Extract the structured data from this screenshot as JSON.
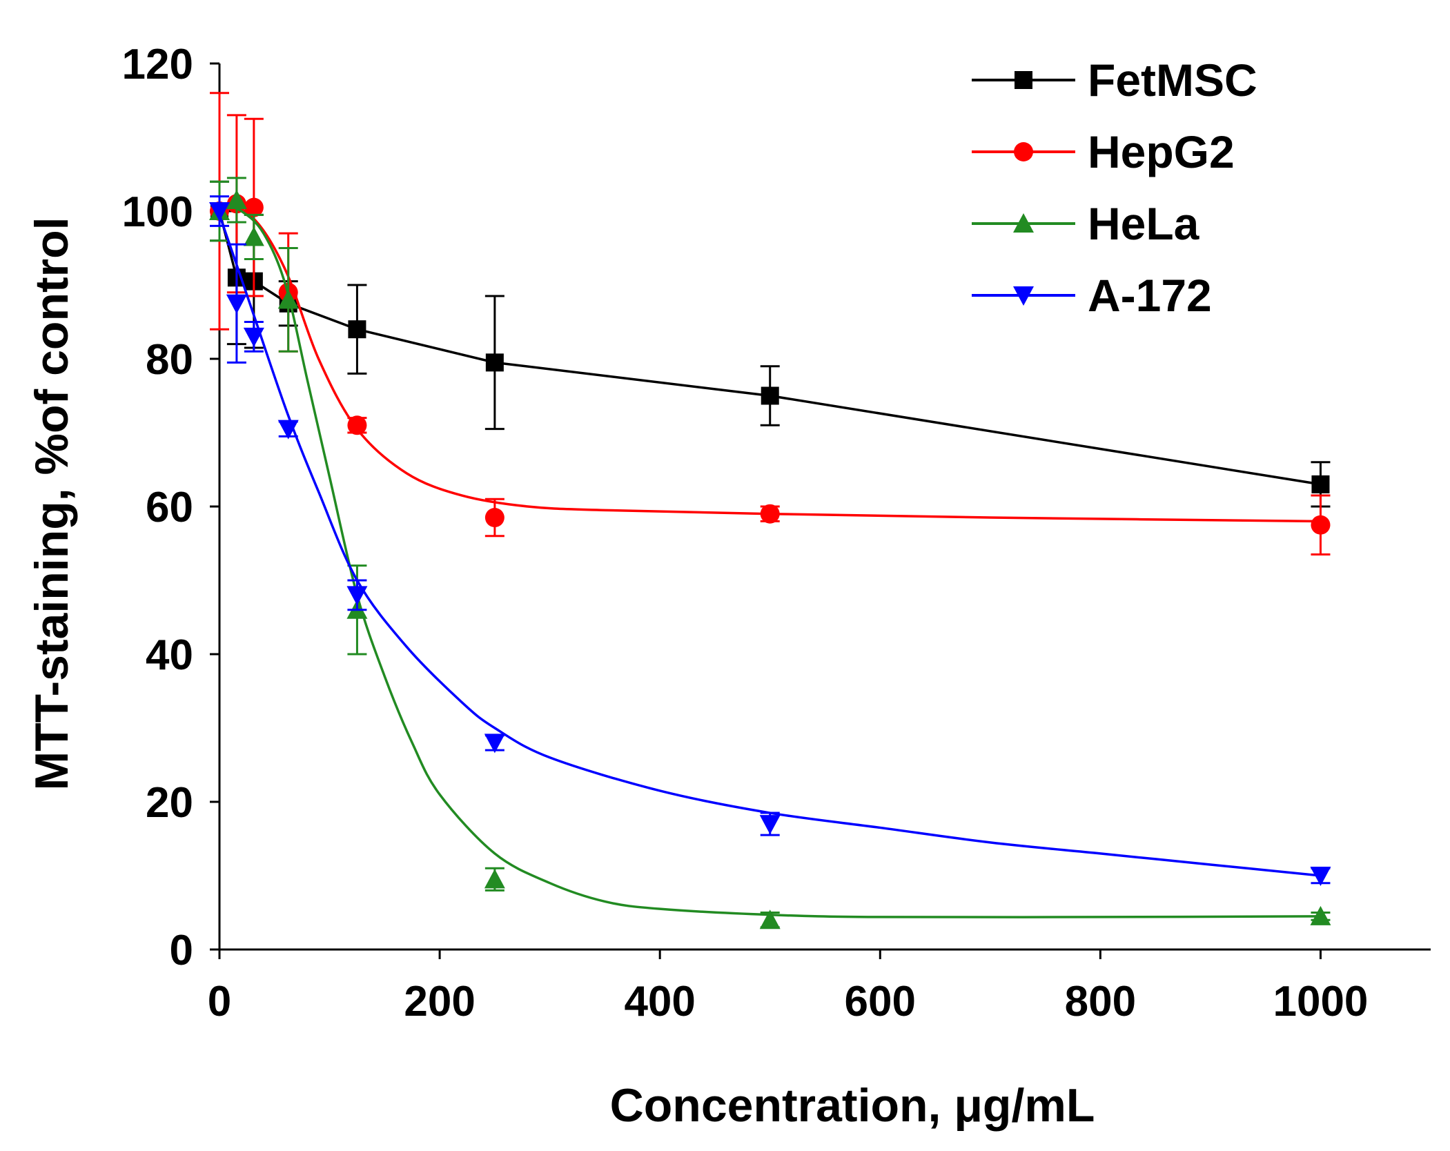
{
  "chart_data": {
    "type": "line",
    "title": "",
    "xlabel": "Concentration, μg/mL",
    "ylabel": "MTT-staining, %of control",
    "xlim": [
      0,
      1100
    ],
    "ylim": [
      0,
      120
    ],
    "x_ticks": [
      0,
      200,
      400,
      600,
      800,
      1000
    ],
    "y_ticks": [
      0,
      20,
      40,
      60,
      80,
      100,
      120
    ],
    "x_tick_labels": [
      "0",
      "200",
      "400",
      "600",
      "800",
      "1000"
    ],
    "y_tick_labels": [
      "0",
      "20",
      "40",
      "60",
      "80",
      "100",
      "120"
    ],
    "grid": false,
    "legend_position": "top-right",
    "series": [
      {
        "name": "FetMSC",
        "color": "#000000",
        "marker": "square",
        "line": "straight",
        "x": [
          0,
          15.6,
          31.25,
          62.5,
          125,
          250,
          500,
          1000
        ],
        "y": [
          100,
          91,
          90.5,
          87.5,
          84,
          79.5,
          75,
          63
        ],
        "err": [
          4,
          9,
          9,
          3,
          6,
          9,
          4,
          3
        ]
      },
      {
        "name": "HepG2",
        "color": "#ff0000",
        "marker": "circle",
        "line": "smooth",
        "x": [
          0,
          15.6,
          31.25,
          62.5,
          125,
          250,
          500,
          1000
        ],
        "y": [
          100,
          101,
          100.5,
          89,
          71,
          58.5,
          59,
          57.5
        ],
        "err": [
          16,
          12,
          12,
          8,
          1,
          2.5,
          1,
          4
        ],
        "fit": [
          [
            0,
            101
          ],
          [
            31,
            99
          ],
          [
            60,
            92
          ],
          [
            90,
            80
          ],
          [
            125,
            70.5
          ],
          [
            170,
            64.5
          ],
          [
            220,
            61.5
          ],
          [
            280,
            60
          ],
          [
            350,
            59.5
          ],
          [
            500,
            59
          ],
          [
            700,
            58.5
          ],
          [
            1000,
            58
          ]
        ]
      },
      {
        "name": "HeLa",
        "color": "#228b22",
        "marker": "triangle-up",
        "line": "smooth",
        "x": [
          0,
          15.6,
          31.25,
          62.5,
          125,
          250,
          500,
          1000
        ],
        "y": [
          100,
          101.5,
          96.5,
          88,
          46,
          9.5,
          4,
          4.5
        ],
        "err": [
          4,
          3,
          3,
          7,
          6,
          1.5,
          1,
          0.5
        ],
        "fit": [
          [
            0,
            101
          ],
          [
            20,
            100
          ],
          [
            40,
            97
          ],
          [
            60,
            90
          ],
          [
            80,
            77
          ],
          [
            100,
            64
          ],
          [
            125,
            48
          ],
          [
            150,
            37
          ],
          [
            175,
            28
          ],
          [
            200,
            21
          ],
          [
            250,
            13
          ],
          [
            300,
            9
          ],
          [
            350,
            6.5
          ],
          [
            400,
            5.5
          ],
          [
            500,
            4.7
          ],
          [
            600,
            4.4
          ],
          [
            800,
            4.4
          ],
          [
            1000,
            4.5
          ]
        ]
      },
      {
        "name": "A-172",
        "color": "#0000ff",
        "marker": "triangle-down",
        "line": "smooth",
        "x": [
          0,
          15.6,
          31.25,
          62.5,
          125,
          250,
          500,
          1000
        ],
        "y": [
          100,
          87.5,
          83,
          70.5,
          48,
          28,
          17,
          10
        ],
        "err": [
          2,
          8,
          2,
          1,
          2,
          1,
          1.5,
          1
        ],
        "fit": [
          [
            0,
            99.5
          ],
          [
            15,
            93
          ],
          [
            31,
            86
          ],
          [
            62,
            72.5
          ],
          [
            90,
            62
          ],
          [
            125,
            50
          ],
          [
            170,
            41
          ],
          [
            220,
            33.5
          ],
          [
            250,
            30
          ],
          [
            300,
            26
          ],
          [
            400,
            21.5
          ],
          [
            500,
            18.5
          ],
          [
            600,
            16.5
          ],
          [
            700,
            14.5
          ],
          [
            800,
            13
          ],
          [
            900,
            11.5
          ],
          [
            1000,
            10
          ]
        ]
      }
    ]
  }
}
